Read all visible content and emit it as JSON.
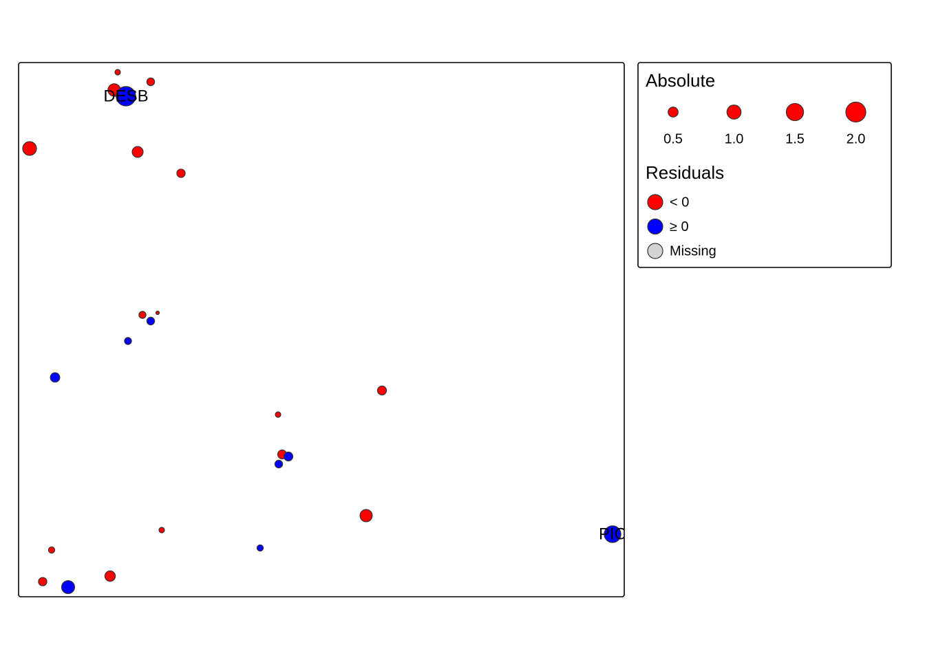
{
  "chart_data": {
    "type": "bubble",
    "size_legend": {
      "title": "Absolute",
      "ticks": [
        {
          "value": 0.5,
          "label": "0.5"
        },
        {
          "value": 1.0,
          "label": "1.0"
        },
        {
          "value": 1.5,
          "label": "1.5"
        },
        {
          "value": 2.0,
          "label": "2.0"
        }
      ]
    },
    "color_legend": {
      "title": "Residuals",
      "missing": {
        "name": "Missing",
        "color": "#d3d3d3"
      }
    },
    "series": [
      {
        "name": "< 0",
        "color": "#ff0000",
        "values": [
          -0.15,
          -0.3,
          -0.8,
          -0.95,
          -0.6,
          -0.35,
          -0.25,
          -0.06,
          -0.4,
          -0.15,
          -0.4,
          -0.75,
          -0.15,
          -0.2,
          -0.55,
          -0.35
        ]
      },
      {
        "name": "≥ 0",
        "color": "#0000ff",
        "values": [
          1.9,
          0.3,
          0.25,
          0.45,
          0.4,
          0.3,
          1.4,
          0.2,
          0.85
        ],
        "point_labels": [
          "DESB",
          null,
          null,
          null,
          null,
          null,
          "PIC",
          null,
          null
        ]
      }
    ]
  }
}
